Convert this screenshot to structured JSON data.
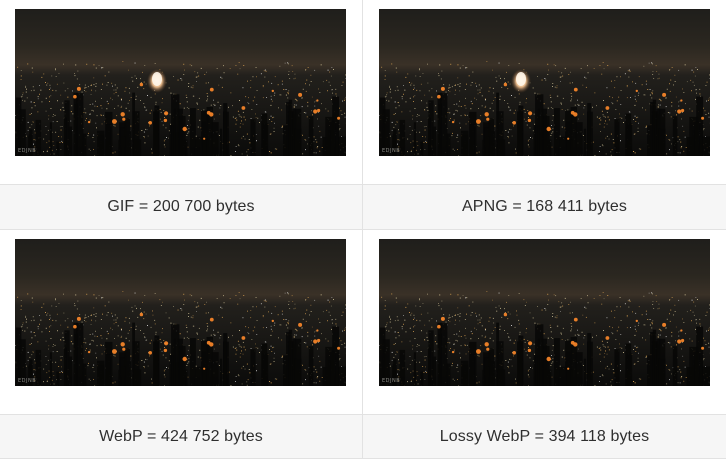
{
  "panels": [
    {
      "label": "GIF = 200 700 bytes",
      "watermark": "EDJNB",
      "has_explosion": true
    },
    {
      "label": "APNG = 168 411 bytes",
      "watermark": "EDJNB",
      "has_explosion": true
    },
    {
      "label": "WebP = 424 752 bytes",
      "watermark": "EDJNB",
      "has_explosion": false
    },
    {
      "label": "Lossy WebP = 394 118 bytes",
      "watermark": "EDJNB",
      "has_explosion": false
    }
  ],
  "colors": {
    "label_background": "#f6f6f6",
    "divider": "#e2e2e2",
    "label_text": "#2f2f2f",
    "sky": "#2a2620",
    "city": "#0a0a09"
  }
}
